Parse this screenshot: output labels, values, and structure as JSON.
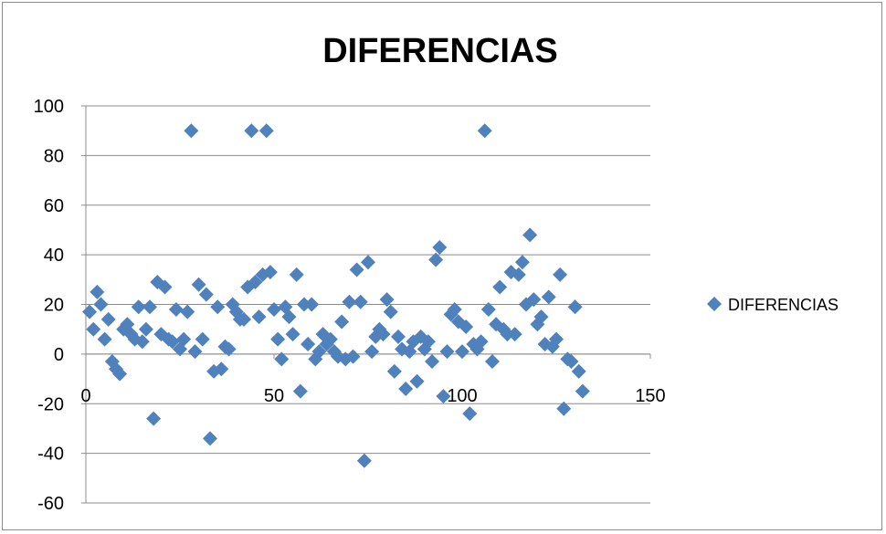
{
  "chart_data": {
    "type": "scatter",
    "title": "DIFERENCIAS",
    "xlabel": "",
    "ylabel": "",
    "xlim": [
      0,
      150
    ],
    "ylim": [
      -60,
      100
    ],
    "x_ticks": [
      "0",
      "50",
      "100",
      "150"
    ],
    "y_ticks": [
      "100",
      "80",
      "60",
      "40",
      "20",
      "0",
      "-20",
      "-40",
      "-60"
    ],
    "grid": "horizontal",
    "legend": "right",
    "marker_color": "#4f81bd",
    "series": [
      {
        "name": "DIFERENCIAS",
        "points": [
          [
            1,
            17
          ],
          [
            2,
            10
          ],
          [
            3,
            25
          ],
          [
            4,
            20
          ],
          [
            5,
            6
          ],
          [
            6,
            14
          ],
          [
            7,
            -3
          ],
          [
            8,
            -6
          ],
          [
            9,
            -8
          ],
          [
            10,
            10
          ],
          [
            11,
            12
          ],
          [
            12,
            8
          ],
          [
            13,
            6
          ],
          [
            14,
            19
          ],
          [
            15,
            5
          ],
          [
            16,
            10
          ],
          [
            17,
            19
          ],
          [
            18,
            -26
          ],
          [
            19,
            29
          ],
          [
            20,
            8
          ],
          [
            21,
            27
          ],
          [
            22,
            6
          ],
          [
            23,
            5
          ],
          [
            24,
            18
          ],
          [
            25,
            2
          ],
          [
            26,
            6
          ],
          [
            27,
            17
          ],
          [
            28,
            90
          ],
          [
            29,
            1
          ],
          [
            30,
            28
          ],
          [
            31,
            6
          ],
          [
            32,
            24
          ],
          [
            33,
            -34
          ],
          [
            34,
            -7
          ],
          [
            35,
            19
          ],
          [
            36,
            -6
          ],
          [
            37,
            3
          ],
          [
            38,
            2
          ],
          [
            39,
            20
          ],
          [
            40,
            17
          ],
          [
            41,
            14
          ],
          [
            42,
            14
          ],
          [
            43,
            27
          ],
          [
            44,
            90
          ],
          [
            45,
            29
          ],
          [
            46,
            15
          ],
          [
            47,
            32
          ],
          [
            48,
            90
          ],
          [
            49,
            33
          ],
          [
            50,
            18
          ],
          [
            51,
            6
          ],
          [
            52,
            -2
          ],
          [
            53,
            19
          ],
          [
            54,
            15
          ],
          [
            55,
            8
          ],
          [
            56,
            32
          ],
          [
            57,
            -15
          ],
          [
            58,
            20
          ],
          [
            59,
            4
          ],
          [
            60,
            20
          ],
          [
            61,
            -2
          ],
          [
            62,
            1
          ],
          [
            63,
            8
          ],
          [
            64,
            4
          ],
          [
            65,
            6
          ],
          [
            66,
            1
          ],
          [
            67,
            -1
          ],
          [
            68,
            13
          ],
          [
            69,
            -2
          ],
          [
            70,
            21
          ],
          [
            71,
            -1
          ],
          [
            72,
            34
          ],
          [
            73,
            21
          ],
          [
            74,
            -43
          ],
          [
            75,
            37
          ],
          [
            76,
            1
          ],
          [
            77,
            7
          ],
          [
            78,
            10
          ],
          [
            79,
            8
          ],
          [
            80,
            22
          ],
          [
            81,
            17
          ],
          [
            82,
            -7
          ],
          [
            83,
            7
          ],
          [
            84,
            2
          ],
          [
            85,
            -14
          ],
          [
            86,
            1
          ],
          [
            87,
            5
          ],
          [
            88,
            -11
          ],
          [
            89,
            7
          ],
          [
            90,
            2
          ],
          [
            91,
            5
          ],
          [
            92,
            -3
          ],
          [
            93,
            38
          ],
          [
            94,
            43
          ],
          [
            95,
            -17
          ],
          [
            96,
            1
          ],
          [
            97,
            16
          ],
          [
            98,
            18
          ],
          [
            99,
            13
          ],
          [
            100,
            1
          ],
          [
            101,
            11
          ],
          [
            102,
            -24
          ],
          [
            103,
            4
          ],
          [
            104,
            2
          ],
          [
            105,
            5
          ],
          [
            106,
            90
          ],
          [
            107,
            18
          ],
          [
            108,
            -3
          ],
          [
            109,
            12
          ],
          [
            110,
            27
          ],
          [
            111,
            10
          ],
          [
            112,
            8
          ],
          [
            113,
            33
          ],
          [
            114,
            8
          ],
          [
            115,
            32
          ],
          [
            116,
            37
          ],
          [
            117,
            20
          ],
          [
            118,
            48
          ],
          [
            119,
            22
          ],
          [
            120,
            12
          ],
          [
            121,
            15
          ],
          [
            122,
            4
          ],
          [
            123,
            23
          ],
          [
            124,
            3
          ],
          [
            125,
            6
          ],
          [
            126,
            32
          ],
          [
            127,
            -22
          ],
          [
            128,
            -2
          ],
          [
            129,
            -3
          ],
          [
            130,
            19
          ],
          [
            131,
            -7
          ],
          [
            132,
            -15
          ]
        ]
      }
    ]
  }
}
